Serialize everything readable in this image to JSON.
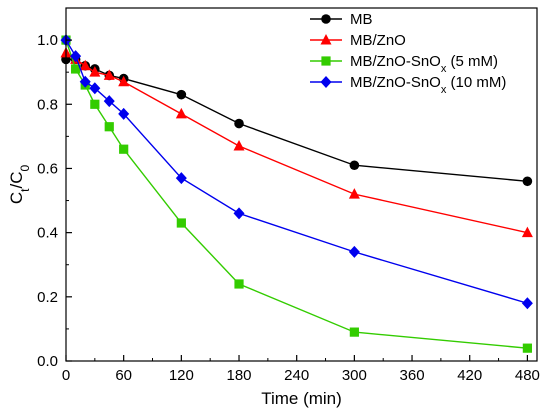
{
  "chart_data": {
    "type": "line",
    "title": "",
    "xlabel": "Time (min)",
    "ylabel": "Ct/C0",
    "xlim": [
      0,
      490
    ],
    "ylim": [
      0,
      1.1
    ],
    "xticks": [
      0,
      60,
      120,
      180,
      240,
      300,
      360,
      420,
      480
    ],
    "yticks": [
      0.0,
      0.2,
      0.4,
      0.6,
      0.8,
      1.0
    ],
    "grid": false,
    "legend_position": "top-right",
    "series": [
      {
        "name": "MB",
        "marker": "circle",
        "color": "#000000",
        "x": [
          0,
          10,
          20,
          30,
          45,
          60,
          120,
          180,
          300,
          480
        ],
        "y": [
          0.94,
          0.94,
          0.92,
          0.91,
          0.89,
          0.88,
          0.83,
          0.74,
          0.61,
          0.56
        ]
      },
      {
        "name": "MB/ZnO",
        "marker": "triangle",
        "color": "#ff0000",
        "x": [
          0,
          10,
          20,
          30,
          45,
          60,
          120,
          180,
          300,
          480
        ],
        "y": [
          0.96,
          0.94,
          0.92,
          0.9,
          0.89,
          0.87,
          0.77,
          0.67,
          0.52,
          0.4
        ]
      },
      {
        "name": "MB/ZnO-SnOx (5 mM)",
        "marker": "square",
        "color": "#33cc00",
        "x": [
          0,
          10,
          20,
          30,
          45,
          60,
          120,
          180,
          300,
          480
        ],
        "y": [
          1.0,
          0.91,
          0.86,
          0.8,
          0.73,
          0.66,
          0.43,
          0.24,
          0.09,
          0.04
        ]
      },
      {
        "name": "MB/ZnO-SnOx (10 mM)",
        "marker": "diamond",
        "color": "#0000ee",
        "x": [
          0,
          10,
          20,
          30,
          45,
          60,
          120,
          180,
          300,
          480
        ],
        "y": [
          1.0,
          0.95,
          0.87,
          0.85,
          0.81,
          0.77,
          0.57,
          0.46,
          0.34,
          0.18
        ]
      }
    ]
  }
}
